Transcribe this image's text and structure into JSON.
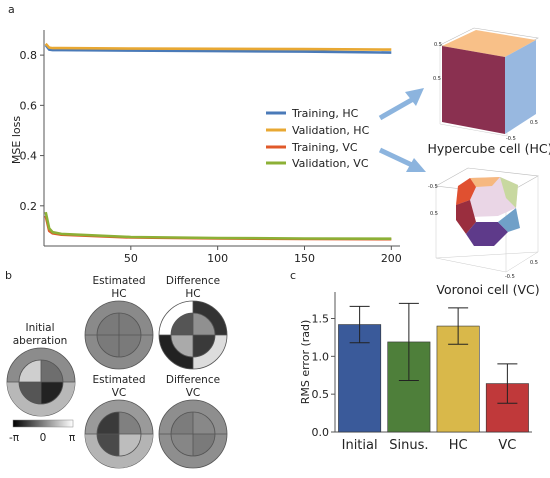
{
  "panel_labels": {
    "a": "a",
    "b": "b",
    "c": "c"
  },
  "panel_a": {
    "ylabel": "MSE loss",
    "yticks": [
      "0.2",
      "0.4",
      "0.6",
      "0.8"
    ],
    "xticks": [
      "50",
      "100",
      "150",
      "200"
    ],
    "legend": [
      "Training, HC",
      "Validation, HC",
      "Training, VC",
      "Validation, VC"
    ],
    "cell_labels": {
      "hc": "Hypercube cell (HC)",
      "vc": "Voronoi cell (VC)"
    },
    "mini_ticks": {
      "hc_top": "0.5",
      "hc_left": "0.5",
      "hc_bottom_a": "-0.5",
      "hc_bottom_b": "0.5",
      "vc_top": "-0.5",
      "vc_left": "0.5",
      "vc_bottom_a": "-0.5",
      "vc_bottom_b": "0.5"
    }
  },
  "panel_b": {
    "initial": "Initial aberration",
    "initial_l1": "Initial",
    "initial_l2": "aberration",
    "est_hc_l1": "Estimated",
    "est_hc_l2": "HC",
    "diff_hc_l1": "Difference",
    "diff_hc_l2": "HC",
    "est_vc_l1": "Estimated",
    "est_vc_l2": "VC",
    "diff_vc_l1": "Difference",
    "diff_vc_l2": "VC",
    "colorbar": [
      "-π",
      "0",
      "π"
    ]
  },
  "panel_c": {
    "ylabel": "RMS error (rad)",
    "yticks": [
      "0.0",
      "0.5",
      "1.0",
      "1.5"
    ]
  },
  "colors": {
    "training_hc": "#4a7ab8",
    "validation_hc": "#e8a833",
    "training_vc": "#e0592a",
    "validation_vc": "#8cb036",
    "bar_initial": "#3a5a9a",
    "bar_sinus": "#4e7f3a",
    "bar_hc": "#d9b84a",
    "bar_vc": "#c0393a"
  },
  "chart_data": [
    {
      "type": "line",
      "ylabel": "MSE loss",
      "xlim": [
        0,
        205
      ],
      "ylim": [
        0.04,
        0.9
      ],
      "series": [
        {
          "name": "Training, HC",
          "x": [
            1,
            3,
            5,
            10,
            50,
            100,
            150,
            200
          ],
          "values": [
            0.84,
            0.822,
            0.82,
            0.82,
            0.818,
            0.816,
            0.814,
            0.81
          ]
        },
        {
          "name": "Validation, HC",
          "x": [
            1,
            3,
            5,
            10,
            50,
            100,
            150,
            200
          ],
          "values": [
            0.845,
            0.83,
            0.828,
            0.828,
            0.826,
            0.825,
            0.824,
            0.822
          ]
        },
        {
          "name": "Training, VC",
          "x": [
            1,
            3,
            5,
            10,
            50,
            100,
            150,
            200
          ],
          "values": [
            0.16,
            0.1,
            0.09,
            0.085,
            0.074,
            0.07,
            0.068,
            0.067
          ]
        },
        {
          "name": "Validation, VC",
          "x": [
            1,
            3,
            5,
            10,
            50,
            100,
            150,
            200
          ],
          "values": [
            0.175,
            0.11,
            0.095,
            0.088,
            0.076,
            0.072,
            0.07,
            0.069
          ]
        }
      ]
    },
    {
      "type": "bar",
      "ylabel": "RMS error (rad)",
      "categories": [
        "Initial",
        "Sinus.",
        "HC",
        "VC"
      ],
      "values": [
        1.42,
        1.19,
        1.4,
        0.64
      ],
      "error": [
        0.24,
        0.51,
        0.24,
        0.26
      ],
      "ylim": [
        0,
        1.85
      ]
    }
  ]
}
